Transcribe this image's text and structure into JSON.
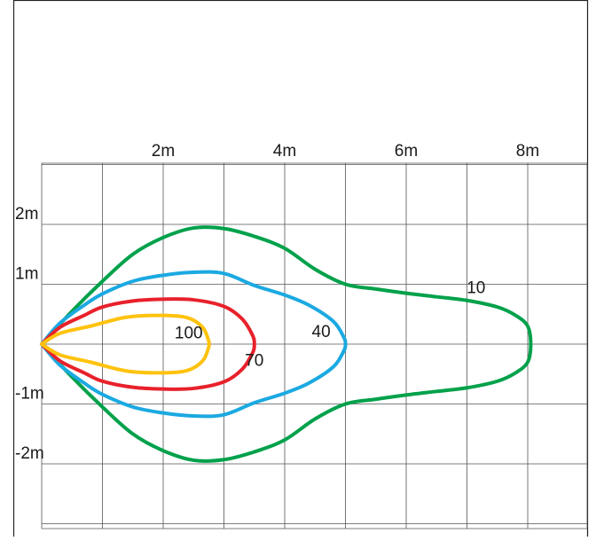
{
  "chart_data": {
    "type": "line",
    "title": "",
    "x_unit": "m",
    "y_unit": "m",
    "xlim": [
      -0.5,
      8.5
    ],
    "ylim": [
      -3.1,
      3.0
    ],
    "x_ticks": [
      {
        "value": 2,
        "label": "2m"
      },
      {
        "value": 4,
        "label": "4m"
      },
      {
        "value": 6,
        "label": "6m"
      },
      {
        "value": 8,
        "label": "8m"
      }
    ],
    "y_ticks": [
      {
        "value": 2,
        "label": "2m"
      },
      {
        "value": 1,
        "label": "1m"
      },
      {
        "value": -1,
        "label": "-1m"
      },
      {
        "value": -2,
        "label": "-2m"
      }
    ],
    "grid": true,
    "series": [
      {
        "name": "10",
        "color": "#00a14b",
        "label_at": [
          7.15,
          0.85
        ],
        "points": [
          [
            0,
            0
          ],
          [
            0.5,
            0.55
          ],
          [
            1,
            1.05
          ],
          [
            1.5,
            1.5
          ],
          [
            2,
            1.78
          ],
          [
            2.5,
            1.94
          ],
          [
            3,
            1.93
          ],
          [
            3.5,
            1.8
          ],
          [
            4,
            1.6
          ],
          [
            4.5,
            1.25
          ],
          [
            5,
            1.0
          ],
          [
            5.5,
            0.92
          ],
          [
            6,
            0.85
          ],
          [
            6.5,
            0.79
          ],
          [
            7,
            0.73
          ],
          [
            7.5,
            0.62
          ],
          [
            7.8,
            0.48
          ],
          [
            8.0,
            0.3
          ],
          [
            8.05,
            0
          ]
        ]
      },
      {
        "name": "40",
        "color": "#1ba9e1",
        "label_at": [
          4.6,
          0.12
        ],
        "points": [
          [
            0,
            0
          ],
          [
            0.3,
            0.35
          ],
          [
            0.7,
            0.65
          ],
          [
            1,
            0.84
          ],
          [
            1.5,
            1.05
          ],
          [
            2,
            1.15
          ],
          [
            2.5,
            1.2
          ],
          [
            3,
            1.18
          ],
          [
            3.5,
            0.98
          ],
          [
            4,
            0.82
          ],
          [
            4.4,
            0.65
          ],
          [
            4.8,
            0.38
          ],
          [
            4.97,
            0.12
          ],
          [
            5,
            0
          ]
        ]
      },
      {
        "name": "70",
        "color": "#e8212b",
        "label_at": [
          3.5,
          -0.36
        ],
        "points": [
          [
            0,
            0
          ],
          [
            0.3,
            0.28
          ],
          [
            0.7,
            0.48
          ],
          [
            1,
            0.62
          ],
          [
            1.5,
            0.72
          ],
          [
            2,
            0.75
          ],
          [
            2.5,
            0.74
          ],
          [
            3,
            0.63
          ],
          [
            3.3,
            0.42
          ],
          [
            3.47,
            0.15
          ],
          [
            3.5,
            0
          ]
        ]
      },
      {
        "name": "100",
        "color": "#ffc20e",
        "label_at": [
          2.42,
          0.1
        ],
        "points": [
          [
            0,
            0
          ],
          [
            0.3,
            0.18
          ],
          [
            0.8,
            0.3
          ],
          [
            1.4,
            0.45
          ],
          [
            2,
            0.48
          ],
          [
            2.4,
            0.44
          ],
          [
            2.65,
            0.28
          ],
          [
            2.75,
            0.05
          ],
          [
            2.75,
            0
          ]
        ]
      }
    ]
  }
}
